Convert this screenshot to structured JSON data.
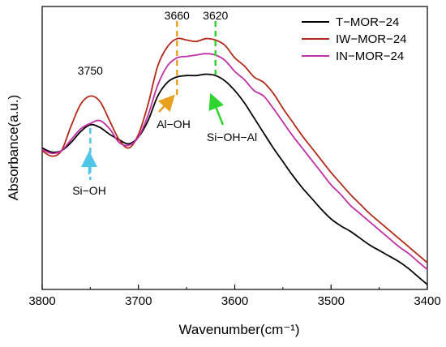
{
  "chart_data": {
    "type": "line",
    "xlabel": "Wavenumber(cm⁻¹)",
    "ylabel": "Absorbance(a.u.)",
    "xlim": [
      3800,
      3400
    ],
    "x_reversed": true,
    "y_ticks_shown": false,
    "x_ticks": [
      3800,
      3700,
      3600,
      3500,
      3400
    ],
    "x_tick_labels": [
      "3800",
      "3700",
      "3600",
      "3500",
      "3400"
    ],
    "ylim": [
      0,
      1
    ],
    "legend_position": "top-right",
    "series": [
      {
        "name": "T−MOR−24",
        "color": "#000000",
        "x": [
          3800,
          3790,
          3780,
          3770,
          3760,
          3750,
          3740,
          3730,
          3720,
          3710,
          3700,
          3690,
          3680,
          3670,
          3660,
          3650,
          3640,
          3630,
          3620,
          3610,
          3600,
          3590,
          3580,
          3570,
          3560,
          3550,
          3540,
          3530,
          3520,
          3510,
          3500,
          3490,
          3480,
          3470,
          3460,
          3450,
          3440,
          3430,
          3420,
          3410,
          3400
        ],
        "values": [
          0.5,
          0.485,
          0.49,
          0.52,
          0.56,
          0.585,
          0.575,
          0.55,
          0.53,
          0.515,
          0.54,
          0.6,
          0.69,
          0.74,
          0.76,
          0.765,
          0.765,
          0.77,
          0.765,
          0.745,
          0.71,
          0.665,
          0.61,
          0.555,
          0.5,
          0.45,
          0.4,
          0.355,
          0.315,
          0.275,
          0.24,
          0.215,
          0.195,
          0.17,
          0.145,
          0.125,
          0.105,
          0.085,
          0.06,
          0.03,
          0.0
        ]
      },
      {
        "name": "IW−MOR−24",
        "color": "#b22a1a",
        "x": [
          3800,
          3790,
          3780,
          3770,
          3760,
          3750,
          3740,
          3730,
          3720,
          3710,
          3700,
          3690,
          3680,
          3670,
          3660,
          3650,
          3640,
          3630,
          3620,
          3610,
          3600,
          3590,
          3580,
          3570,
          3560,
          3550,
          3540,
          3530,
          3520,
          3510,
          3500,
          3490,
          3480,
          3470,
          3460,
          3450,
          3440,
          3430,
          3420,
          3410,
          3400
        ],
        "values": [
          0.49,
          0.47,
          0.49,
          0.58,
          0.66,
          0.69,
          0.67,
          0.6,
          0.53,
          0.5,
          0.55,
          0.66,
          0.8,
          0.87,
          0.9,
          0.895,
          0.89,
          0.9,
          0.895,
          0.875,
          0.83,
          0.8,
          0.76,
          0.74,
          0.7,
          0.645,
          0.595,
          0.545,
          0.5,
          0.455,
          0.41,
          0.37,
          0.33,
          0.295,
          0.26,
          0.23,
          0.2,
          0.17,
          0.14,
          0.11,
          0.08
        ]
      },
      {
        "name": "IN−MOR−24",
        "color": "#c02fa6",
        "x": [
          3800,
          3790,
          3780,
          3770,
          3760,
          3750,
          3740,
          3730,
          3720,
          3710,
          3700,
          3690,
          3680,
          3670,
          3660,
          3650,
          3640,
          3630,
          3620,
          3610,
          3600,
          3590,
          3580,
          3570,
          3560,
          3550,
          3540,
          3530,
          3520,
          3510,
          3500,
          3490,
          3480,
          3470,
          3460,
          3450,
          3440,
          3430,
          3420,
          3410,
          3400
        ],
        "values": [
          0.495,
          0.48,
          0.49,
          0.53,
          0.57,
          0.59,
          0.6,
          0.57,
          0.52,
          0.51,
          0.54,
          0.62,
          0.73,
          0.8,
          0.83,
          0.835,
          0.84,
          0.845,
          0.84,
          0.82,
          0.78,
          0.75,
          0.71,
          0.69,
          0.645,
          0.595,
          0.545,
          0.5,
          0.455,
          0.41,
          0.365,
          0.33,
          0.29,
          0.26,
          0.23,
          0.2,
          0.17,
          0.14,
          0.115,
          0.085,
          0.055
        ]
      }
    ],
    "markers": [
      {
        "label": "3750",
        "x": 3750,
        "color": "#4fc6e6"
      },
      {
        "label": "3660",
        "x": 3660,
        "color": "#e7a11e"
      },
      {
        "label": "3620",
        "x": 3620,
        "color": "#2fd42f"
      }
    ],
    "annotations": [
      {
        "text": "Si−OH",
        "color": "#4fc6e6"
      },
      {
        "text": "Al−OH",
        "color": "#e7a11e"
      },
      {
        "text": "Si−OH−Al",
        "color": "#2fd42f"
      }
    ]
  }
}
